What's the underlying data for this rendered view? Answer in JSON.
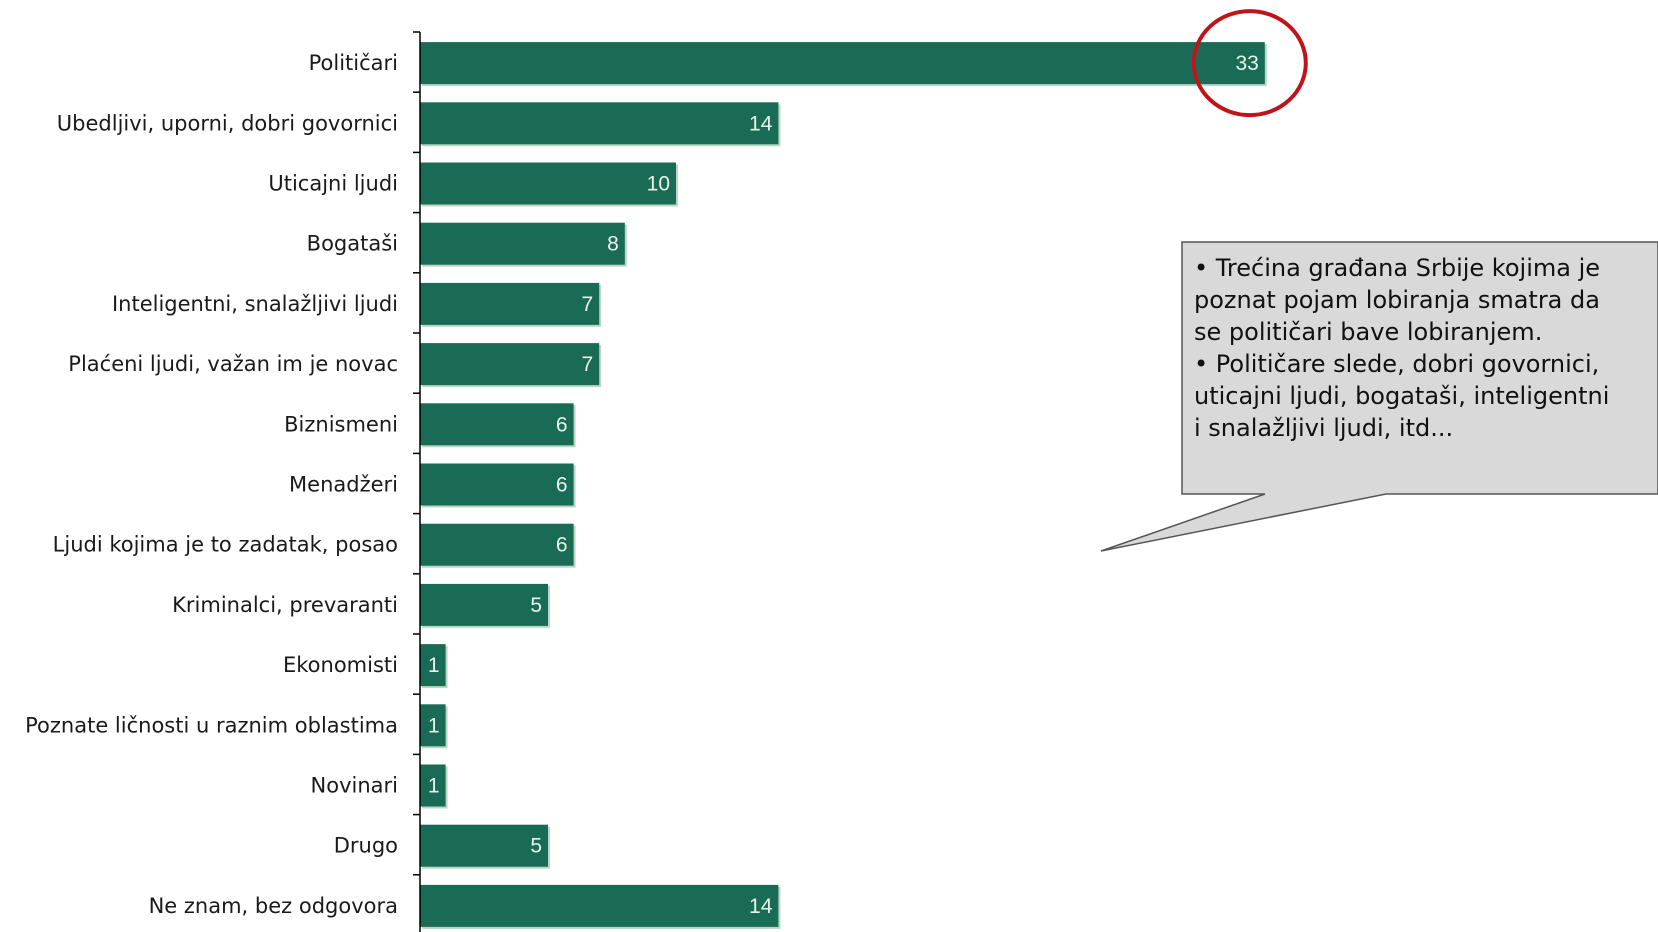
{
  "chart_data": {
    "type": "bar",
    "orientation": "horizontal",
    "categories": [
      "Političari",
      "Ubedljivi, uporni, dobri govornici",
      "Uticajni ljudi",
      "Bogataši",
      "Inteligentni, snalažljivi ljudi",
      "Plaćeni ljudi, važan im je novac",
      "Biznismeni",
      "Menadžeri",
      "Ljudi kojima je to zadatak, posao",
      "Kriminalci, prevaranti",
      "Ekonomisti",
      "Poznate ličnosti u raznim oblastima",
      "Novinari",
      "Drugo",
      "Ne znam, bez odgovora"
    ],
    "values": [
      33,
      14,
      10,
      8,
      7,
      7,
      6,
      6,
      6,
      5,
      1,
      1,
      1,
      5,
      14
    ],
    "data_labels": [
      "33",
      "14",
      "10",
      "8",
      "7",
      "7",
      "6",
      "6",
      "6",
      "5",
      "1",
      "1",
      "1",
      "5",
      "14"
    ],
    "highlight_index": 0,
    "title": "",
    "xlabel": "",
    "ylabel": "",
    "grid": false,
    "legend": "none"
  },
  "callout": {
    "lines": [
      "• Trećina građana Srbije kojima je",
      "poznat pojam lobiranja smatra da",
      "se političari bave lobiranjem.",
      "• Političare slede, dobri govornici,",
      "uticajni ljudi, bogataši, inteligentni",
      "i snalažljivi ljudi, itd..."
    ]
  },
  "colors": {
    "bar": "#1a6b55",
    "bar_shadow": "#b9d6c6",
    "value_text": "#e8f4ea",
    "highlight_ring": "#c0141c",
    "callout_fill": "#d9d9d9",
    "axis": "#000000"
  }
}
